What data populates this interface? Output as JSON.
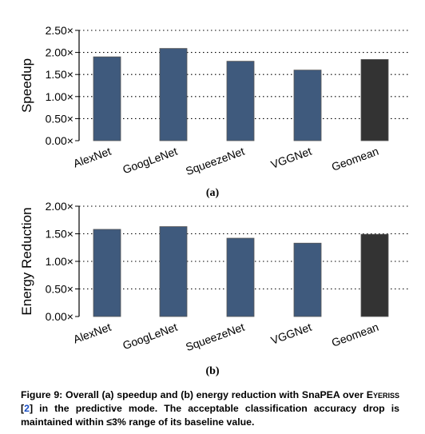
{
  "chart_data": [
    {
      "type": "bar",
      "ylabel": "Speedup",
      "categories": [
        "AlexNet",
        "GoogLeNet",
        "SqueezeNet",
        "VGGNet",
        "Geomean"
      ],
      "values": [
        1.9,
        2.09,
        1.8,
        1.6,
        1.84
      ],
      "ylim": [
        0,
        2.5
      ],
      "yticks": [
        "0.00×",
        "0.50×",
        "1.00×",
        "1.50×",
        "2.00×",
        "2.50×"
      ],
      "grid": "horizontal dotted",
      "sublabel": "(a)"
    },
    {
      "type": "bar",
      "ylabel": "Energy Reduction",
      "categories": [
        "AlexNet",
        "GoogLeNet",
        "SqueezeNet",
        "VGGNet",
        "Geomean"
      ],
      "values": [
        1.58,
        1.63,
        1.42,
        1.33,
        1.49
      ],
      "ylim": [
        0,
        2.0
      ],
      "yticks": [
        "0.00×",
        "0.50×",
        "1.00×",
        "1.50×",
        "2.00×"
      ],
      "grid": "horizontal dotted",
      "sublabel": "(b)"
    }
  ],
  "colors": {
    "bar": "#3f5a7d",
    "geomean": "#333333"
  },
  "caption": {
    "part1": "Figure 9: Overall (a) speedup and (b) energy reduction with SnaPEA over ",
    "eyeriss": "Eyeriss",
    "ref_open": " [",
    "ref": "2",
    "part2": "] in the predictive mode. The acceptable classification accuracy drop is maintained within ≤3% range of its baseline value."
  }
}
